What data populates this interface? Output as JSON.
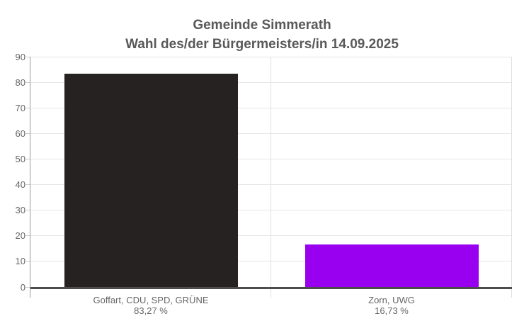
{
  "chart_data": {
    "type": "bar",
    "title": "Gemeinde Simmerath",
    "subtitle": "Wahl des/der Bürgermeisters/in 14.09.2025",
    "categories": [
      "Goffart, CDU, SPD, GRÜNE",
      "Zorn, UWG"
    ],
    "values": [
      83.27,
      16.73
    ],
    "value_labels": [
      "83,27 %",
      "16,73 %"
    ],
    "bar_colors": [
      "#262222",
      "#9900f0"
    ],
    "xlabel": "",
    "ylabel": "",
    "ylim": [
      0,
      90
    ],
    "yticks": [
      0,
      10,
      20,
      30,
      40,
      50,
      60,
      70,
      80,
      90
    ],
    "grid": true,
    "legend": "none",
    "colors": {
      "title_text": "#595959",
      "axis_label_text": "#666666",
      "gridline": "#e6e6e6",
      "category_divider": "#e0e0e0",
      "y_axis_line": "#999999",
      "baseline": "#4d4d4d",
      "background": "#ffffff"
    }
  }
}
